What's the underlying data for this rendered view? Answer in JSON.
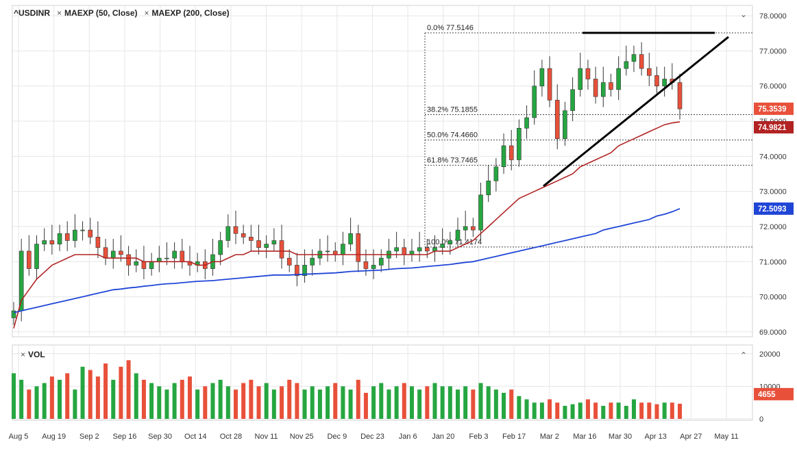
{
  "legend": {
    "symbol": "^USDINR",
    "ma1": "MAEXP (50, Close)",
    "ma2": "MAEXP (200, Close)",
    "volume": "VOL"
  },
  "colors": {
    "up": "#26a641",
    "down": "#e8503a",
    "ma50": "#b22222",
    "ma200": "#1f45d6",
    "grid": "#e6e6e6"
  },
  "price_axis": {
    "ticks": [
      "78.0000",
      "77.0000",
      "76.0000",
      "75.0000",
      "74.0000",
      "73.0000",
      "72.0000",
      "71.0000",
      "70.0000",
      "69.0000"
    ]
  },
  "volume_axis": {
    "ticks": [
      "20000",
      "10000",
      "0"
    ]
  },
  "date_axis": {
    "ticks": [
      "Aug 5",
      "Aug 19",
      "Sep 2",
      "Sep 16",
      "Sep 30",
      "Oct 14",
      "Oct 28",
      "Nov 11",
      "Nov 25",
      "Dec 9",
      "Dec 23",
      "Jan 6",
      "Jan 20",
      "Feb 3",
      "Feb 17",
      "Mar 2",
      "Mar 16",
      "Mar 30",
      "Apr 13",
      "Apr 27",
      "May 11"
    ]
  },
  "price_badges": {
    "last": "75.3539",
    "ma50": "74.9821",
    "ma200": "72.5093",
    "volume": "4655"
  },
  "fib_levels": [
    {
      "label": "0.0% 77.5146",
      "value": 77.5146
    },
    {
      "label": "38.2% 75.1855",
      "value": 75.1855
    },
    {
      "label": "50.0% 74.4660",
      "value": 74.466
    },
    {
      "label": "61.8% 73.7465",
      "value": 73.7465
    },
    {
      "label": "100.0% 71.4174",
      "value": 71.4174
    }
  ],
  "chart_data": {
    "type": "candlestick",
    "title": "^USDINR",
    "ylim": [
      68.9,
      78.1
    ],
    "volume_ylim": [
      0,
      21000
    ],
    "x_range": [
      "Aug 2",
      "May 15"
    ],
    "x": [
      "Aug 1",
      "Aug 6",
      "Aug 8",
      "Aug 12",
      "Aug 15",
      "Aug 19",
      "Aug 22",
      "Aug 27",
      "Aug 30",
      "Sep 3",
      "Sep 6",
      "Sep 10",
      "Sep 13",
      "Sep 17",
      "Sep 20",
      "Sep 24",
      "Sep 27",
      "Oct 1",
      "Oct 4",
      "Oct 8",
      "Oct 11",
      "Oct 15",
      "Oct 18",
      "Oct 22",
      "Oct 25",
      "Oct 29",
      "Nov 1",
      "Nov 5",
      "Nov 8",
      "Nov 12",
      "Nov 15",
      "Nov 19",
      "Nov 22",
      "Nov 26",
      "Nov 29",
      "Dec 3",
      "Dec 6",
      "Dec 10",
      "Dec 13",
      "Dec 17",
      "Dec 20",
      "Dec 24",
      "Dec 27",
      "Dec 31",
      "Jan 3",
      "Jan 7",
      "Jan 10",
      "Jan 14",
      "Jan 17",
      "Jan 21",
      "Jan 24",
      "Jan 28",
      "Jan 31",
      "Feb 4",
      "Feb 7",
      "Feb 11",
      "Feb 14",
      "Feb 18",
      "Feb 21",
      "Feb 25",
      "Feb 28",
      "Mar 3",
      "Mar 6",
      "Mar 9",
      "Mar 11",
      "Mar 13",
      "Mar 16",
      "Mar 17",
      "Mar 18",
      "Mar 19",
      "Mar 20",
      "Mar 23",
      "Mar 25",
      "Mar 27",
      "Mar 30",
      "Apr 1",
      "Apr 3",
      "Apr 7",
      "Apr 9",
      "Apr 13",
      "Apr 15",
      "Apr 17",
      "Apr 20",
      "Apr 22",
      "Apr 24",
      "Apr 27",
      "Apr 28",
      "Apr 29"
    ],
    "close": [
      69.6,
      71.3,
      70.8,
      71.5,
      71.6,
      71.5,
      71.8,
      71.6,
      71.9,
      71.9,
      71.7,
      71.4,
      71.1,
      71.3,
      71.2,
      70.9,
      71.0,
      70.8,
      71.0,
      71.1,
      71.1,
      71.3,
      71.0,
      70.9,
      71.0,
      70.8,
      71.2,
      71.6,
      72.0,
      71.8,
      71.7,
      71.6,
      71.4,
      71.5,
      71.6,
      71.1,
      70.9,
      70.6,
      70.9,
      71.1,
      71.3,
      71.3,
      71.2,
      71.5,
      71.8,
      71.0,
      70.8,
      70.9,
      71.1,
      71.3,
      71.4,
      71.2,
      71.3,
      71.4,
      71.3,
      71.4,
      71.5,
      71.6,
      71.9,
      72.0,
      71.9,
      72.9,
      73.3,
      73.7,
      74.3,
      73.9,
      74.8,
      75.1,
      76.0,
      76.5,
      75.6,
      74.5,
      75.3,
      75.9,
      76.5,
      76.2,
      75.7,
      76.1,
      75.9,
      76.5,
      76.7,
      76.9,
      76.5,
      76.3,
      76.0,
      76.2,
      76.1,
      75.35
    ],
    "ma50": [
      69.1,
      69.9,
      70.2,
      70.5,
      70.7,
      70.9,
      71.0,
      71.1,
      71.2,
      71.2,
      71.2,
      71.2,
      71.1,
      71.1,
      71.1,
      71.1,
      71.1,
      71.0,
      71.0,
      71.0,
      71.0,
      71.0,
      71.0,
      71.0,
      70.9,
      70.9,
      71.0,
      71.0,
      71.1,
      71.2,
      71.2,
      71.3,
      71.3,
      71.3,
      71.3,
      71.3,
      71.3,
      71.2,
      71.2,
      71.2,
      71.2,
      71.2,
      71.2,
      71.2,
      71.2,
      71.2,
      71.2,
      71.2,
      71.2,
      71.2,
      71.2,
      71.2,
      71.2,
      71.2,
      71.2,
      71.3,
      71.3,
      71.3,
      71.4,
      71.5,
      71.6,
      71.8,
      72.0,
      72.2,
      72.4,
      72.6,
      72.8,
      72.9,
      73.0,
      73.1,
      73.2,
      73.3,
      73.4,
      73.5,
      73.7,
      73.8,
      73.9,
      74.0,
      74.1,
      74.3,
      74.4,
      74.5,
      74.6,
      74.7,
      74.8,
      74.9,
      74.95,
      74.98
    ],
    "ma200": [
      69.55,
      69.6,
      69.65,
      69.7,
      69.75,
      69.8,
      69.85,
      69.9,
      69.95,
      70.0,
      70.05,
      70.1,
      70.15,
      70.2,
      70.22,
      70.25,
      70.27,
      70.3,
      70.32,
      70.35,
      70.37,
      70.38,
      70.4,
      70.42,
      70.44,
      70.45,
      70.46,
      70.48,
      70.5,
      70.52,
      70.54,
      70.56,
      70.58,
      70.6,
      70.62,
      70.62,
      70.62,
      70.63,
      70.64,
      70.65,
      70.66,
      70.67,
      70.68,
      70.7,
      70.72,
      70.73,
      70.74,
      70.75,
      70.76,
      70.78,
      70.8,
      70.81,
      70.82,
      70.84,
      70.86,
      70.88,
      70.9,
      70.92,
      70.95,
      70.98,
      71.0,
      71.05,
      71.1,
      71.15,
      71.2,
      71.25,
      71.3,
      71.35,
      71.4,
      71.45,
      71.5,
      71.55,
      71.6,
      71.65,
      71.7,
      71.75,
      71.8,
      71.9,
      71.95,
      72.0,
      72.05,
      72.1,
      72.15,
      72.2,
      72.3,
      72.35,
      72.42,
      72.51
    ],
    "volume": [
      14000,
      12000,
      9000,
      10000,
      11000,
      13000,
      12000,
      14000,
      9000,
      16000,
      15000,
      13000,
      17000,
      12000,
      16000,
      18000,
      14000,
      12000,
      11000,
      10000,
      9000,
      11000,
      12000,
      13000,
      9000,
      10000,
      11000,
      12000,
      10000,
      9000,
      11000,
      12000,
      10000,
      11000,
      9000,
      10000,
      12000,
      11000,
      9000,
      10000,
      9000,
      10000,
      11000,
      10000,
      9000,
      12000,
      8000,
      10000,
      11000,
      9000,
      10000,
      11000,
      10000,
      9000,
      10000,
      11000,
      10000,
      10000,
      9000,
      10000,
      9000,
      11000,
      10000,
      9000,
      8000,
      9000,
      7000,
      6000,
      5000,
      5000,
      6000,
      5000,
      4000,
      4500,
      5000,
      6000,
      5000,
      4000,
      5000,
      5000,
      4000,
      6000,
      5000,
      5000,
      4500,
      5000,
      5000,
      4655
    ]
  }
}
